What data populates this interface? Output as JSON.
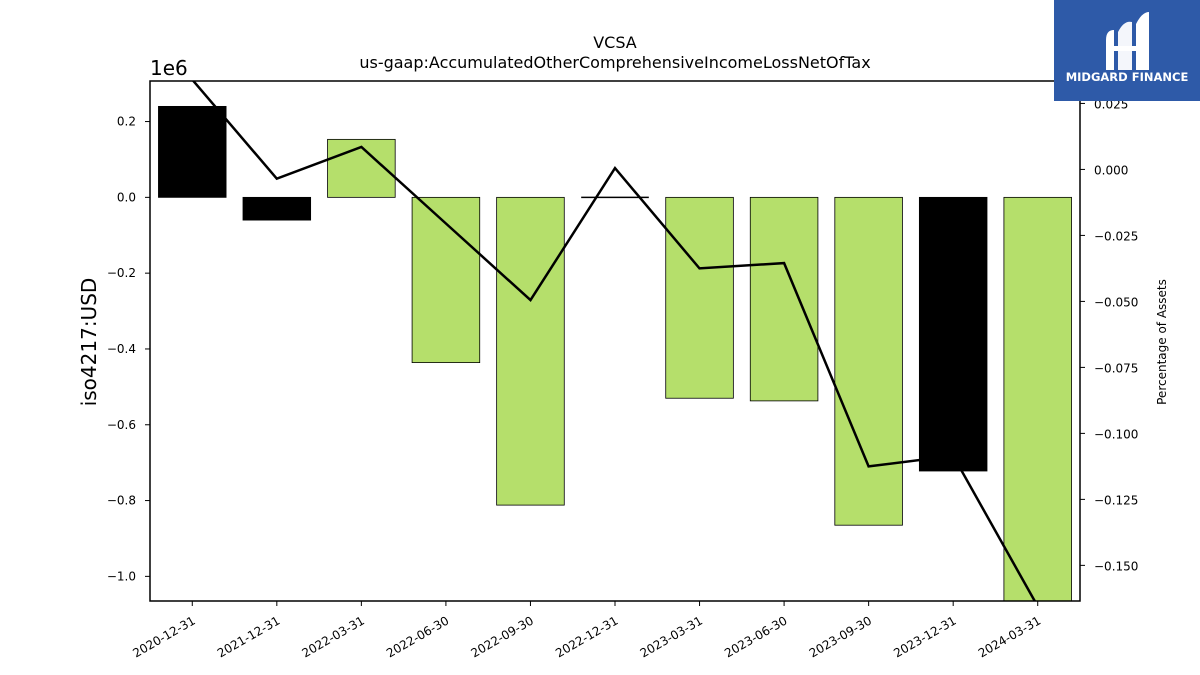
{
  "chart_data": {
    "type": "bar",
    "title": "VCSA",
    "subtitle": "us-gaap:AccumulatedOtherComprehensiveIncomeLossNetOfTax",
    "ylabel": "iso4217:USD",
    "y_offset_label": "1e6",
    "y2label": "Percentage of Assets",
    "categories": [
      "2020-12-31",
      "2021-12-31",
      "2022-03-31",
      "2022-06-30",
      "2022-09-30",
      "2022-12-31",
      "2023-03-31",
      "2023-06-30",
      "2023-09-30",
      "2023-12-31",
      "2024-03-31"
    ],
    "bar_values": [
      240000,
      -60000,
      153000,
      -436000,
      -812000,
      0,
      -530000,
      -537000,
      -865000,
      -722000,
      -1080000
    ],
    "bar_colors": [
      "#000000",
      "#000000",
      "#b5df6b",
      "#b5df6b",
      "#b5df6b",
      "#000000",
      "#b5df6b",
      "#b5df6b",
      "#b5df6b",
      "#000000",
      "#b5df6b"
    ],
    "line_values": [
      0.034,
      -0.0035,
      0.0085,
      -0.0205,
      -0.0495,
      0.0005,
      -0.0375,
      -0.0355,
      -0.1125,
      -0.1085,
      -0.1655
    ],
    "ylim": [
      -1065000,
      307000
    ],
    "y2lim": [
      -0.1635,
      0.0335
    ],
    "yticks": [
      0.2,
      0.0,
      -0.2,
      -0.4,
      -0.6,
      -0.8,
      -1.0
    ],
    "ytick_labels": [
      "0.2",
      "0.0",
      "−0.2",
      "−0.4",
      "−0.6",
      "−0.8",
      "−1.0"
    ],
    "y2ticks": [
      0.025,
      0.0,
      -0.025,
      -0.05,
      -0.075,
      -0.1,
      -0.125,
      -0.15
    ],
    "y2tick_labels": [
      "0.025",
      "0.000",
      "−0.025",
      "−0.050",
      "−0.075",
      "−0.100",
      "−0.125",
      "−0.150"
    ],
    "grid": false,
    "legend": "none"
  },
  "logo": {
    "text": "MIDGARD FINANCE",
    "bg_color": "#2e5aa8"
  }
}
